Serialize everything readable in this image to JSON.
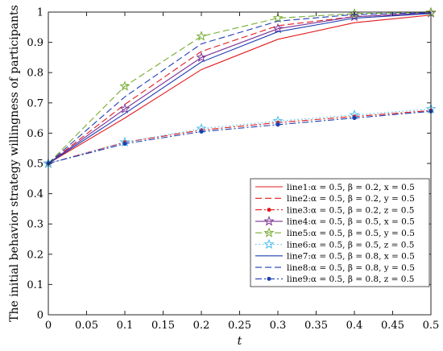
{
  "chart_data": {
    "type": "line",
    "xlabel": "t",
    "ylabel": "The initial behavior strategy willingness of participants",
    "xlim": [
      0,
      0.5
    ],
    "ylim": [
      0,
      1
    ],
    "x": [
      0,
      0.1,
      0.2,
      0.3,
      0.4,
      0.5
    ],
    "x_ticks": [
      "0",
      "0.05",
      "0.1",
      "0.15",
      "0.2",
      "0.25",
      "0.3",
      "0.35",
      "0.4",
      "0.45",
      "0.5"
    ],
    "y_ticks": [
      "0",
      "0.1",
      "0.2",
      "0.3",
      "0.4",
      "0.5",
      "0.6",
      "0.7",
      "0.8",
      "0.9",
      "1"
    ],
    "grid": false,
    "legend_position": "bottom-right",
    "series": [
      {
        "name": "line1:α = 0.5, β = 0.2, x = 0.5",
        "values": [
          0.5,
          0.65,
          0.81,
          0.91,
          0.965,
          0.99
        ],
        "color": "#e31a1c",
        "dash": "solid",
        "marker": "none"
      },
      {
        "name": "line2:α = 0.5, β = 0.2, y = 0.5",
        "values": [
          0.5,
          0.695,
          0.87,
          0.955,
          0.985,
          0.995
        ],
        "color": "#e31a1c",
        "dash": "dashed",
        "marker": "none"
      },
      {
        "name": "line3:α = 0.5, β = 0.2, z = 0.5",
        "values": [
          0.5,
          0.57,
          0.61,
          0.635,
          0.655,
          0.675
        ],
        "color": "#e31a1c",
        "dash": "dashdot",
        "marker": "dot"
      },
      {
        "name": "line4:α = 0.5, β = 0.5, x = 0.5",
        "values": [
          0.5,
          0.68,
          0.85,
          0.945,
          0.985,
          0.997
        ],
        "color": "#7b3294",
        "dash": "solid",
        "marker": "star"
      },
      {
        "name": "line5:α = 0.5, β = 0.5, y = 0.5",
        "values": [
          0.5,
          0.755,
          0.92,
          0.98,
          0.995,
          0.999
        ],
        "color": "#77ac30",
        "dash": "dashed",
        "marker": "star"
      },
      {
        "name": "line6:α = 0.5, β = 0.5, z = 0.5",
        "values": [
          0.5,
          0.57,
          0.615,
          0.64,
          0.66,
          0.68
        ],
        "color": "#4dbeee",
        "dash": "dotted",
        "marker": "star"
      },
      {
        "name": "line7:α = 0.5, β = 0.8, x = 0.5",
        "values": [
          0.5,
          0.665,
          0.835,
          0.935,
          0.98,
          0.995
        ],
        "color": "#1f3fb4",
        "dash": "solid",
        "marker": "none"
      },
      {
        "name": "line8:α = 0.5, β = 0.8, y = 0.5",
        "values": [
          0.5,
          0.72,
          0.895,
          0.97,
          0.992,
          0.998
        ],
        "color": "#1f3fb4",
        "dash": "dashed",
        "marker": "none"
      },
      {
        "name": "line9:α = 0.5, β = 0.8, z = 0.5",
        "values": [
          0.5,
          0.565,
          0.605,
          0.628,
          0.65,
          0.672
        ],
        "color": "#1f3fb4",
        "dash": "dashdot",
        "marker": "dot"
      }
    ]
  }
}
